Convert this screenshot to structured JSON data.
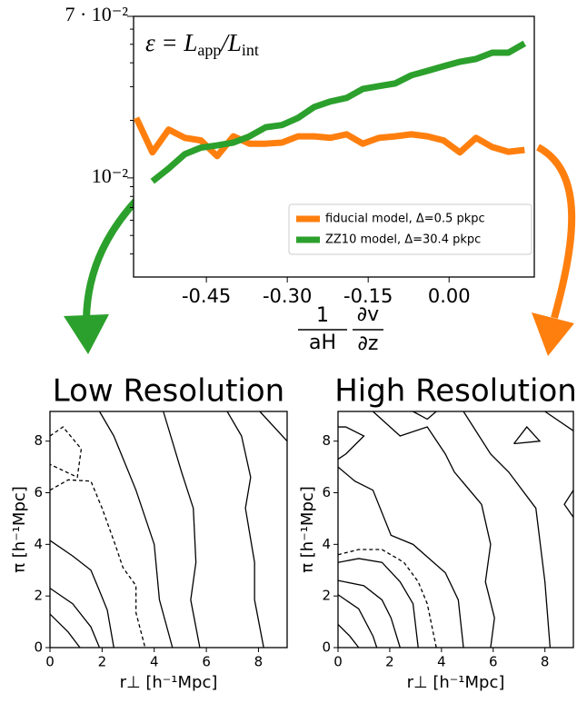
{
  "chart_data": [
    {
      "type": "line",
      "annotation": [
        "ε = L",
        "app",
        "/L",
        "int"
      ],
      "x_label": [
        "1",
        "aH",
        "∂v",
        "∂z"
      ],
      "x": [
        -0.58,
        -0.55,
        -0.52,
        -0.49,
        -0.46,
        -0.43,
        -0.4,
        -0.37,
        -0.34,
        -0.31,
        -0.28,
        -0.25,
        -0.22,
        -0.19,
        -0.16,
        -0.13,
        -0.1,
        -0.07,
        -0.04,
        -0.01,
        0.02,
        0.05,
        0.08,
        0.11,
        0.14
      ],
      "series": [
        {
          "name": "fiducial model, Δ=0.5 pkpc",
          "color": "#ff7f0e",
          "values": [
            0.0206,
            0.0136,
            0.0179,
            0.0162,
            0.0157,
            0.013,
            0.0165,
            0.0151,
            0.0151,
            0.0153,
            0.0165,
            0.0165,
            0.0162,
            0.0169,
            0.0151,
            0.0162,
            0.0165,
            0.0169,
            0.0165,
            0.0157,
            0.0136,
            0.0162,
            0.0145,
            0.0137,
            0.014
          ]
        },
        {
          "name": "ZZ10 model, Δ=30.4 pkpc",
          "color": "#2ca02c",
          "values": [
            null,
            0.0096,
            0.0112,
            0.0133,
            0.0144,
            0.0148,
            0.0153,
            0.0165,
            0.0184,
            0.0189,
            0.0206,
            0.0235,
            0.0251,
            0.0262,
            0.0292,
            0.0302,
            0.0312,
            0.0344,
            0.0363,
            0.0384,
            0.0405,
            0.0419,
            0.0452,
            0.0452,
            0.0505
          ]
        }
      ],
      "log_y": true,
      "xlim": [
        -0.585,
        0.158
      ],
      "xticks": [
        -0.45,
        {
          "value": -0.3,
          "label": "-0.30"
        },
        -0.15,
        {
          "value": 0,
          "label": "0.00"
        }
      ],
      "ylim": [
        0.00303,
        0.07
      ],
      "yticks": [
        {
          "value": 0.01,
          "label": "10⁻²"
        },
        {
          "value": 0.07,
          "label": "7 · 10⁻²"
        }
      ],
      "yminorticks": [
        0.004,
        0.005,
        0.006,
        0.007,
        0.008,
        0.009,
        0.02,
        0.03,
        0.04,
        0.05,
        0.06
      ],
      "legend": "lower right"
    },
    {
      "type": "contour",
      "title": "Low Resolution",
      "x_label": "r⊥ [h⁻¹Mpc]",
      "y_label": "π [h⁻¹Mpc]",
      "xlim": [
        0,
        9.1
      ],
      "ylim": [
        0,
        9.15
      ],
      "xticks": [
        0,
        2,
        4,
        6,
        8
      ],
      "yticks": [
        0,
        2,
        4,
        6,
        8
      ],
      "contours": [
        {
          "dashed": false,
          "x": [
            0,
            0.7,
            1.15
          ],
          "y": [
            1.3,
            0.6,
            0
          ]
        },
        {
          "dashed": false,
          "x": [
            0,
            0.87,
            1.57,
            1.9
          ],
          "y": [
            2.3,
            1.7,
            0.8,
            0
          ]
        },
        {
          "dashed": false,
          "x": [
            0,
            0.87,
            1.57,
            1.9,
            2.2,
            2.45
          ],
          "y": [
            4.15,
            3.55,
            3.0,
            2.2,
            1.45,
            0
          ]
        },
        {
          "dashed": true,
          "x": [
            0,
            0.7,
            1.57,
            2.0,
            2.5,
            2.8,
            3.3,
            3.3,
            3.65
          ],
          "y": [
            6.1,
            6.5,
            6.45,
            5.4,
            4.0,
            3.1,
            2.4,
            1.35,
            0
          ]
        },
        {
          "dashed": true,
          "x": [
            0,
            0.5,
            1.2,
            1.05,
            0
          ],
          "y": [
            8.2,
            8.55,
            7.7,
            6.6,
            7.1
          ]
        },
        {
          "dashed": false,
          "x": [
            1.9,
            2.45,
            3.3,
            4.0,
            4.2,
            4.7
          ],
          "y": [
            9.15,
            8.2,
            6.1,
            4.0,
            1.85,
            0
          ]
        },
        {
          "dashed": false,
          "x": [
            4.35,
            5.05,
            5.5,
            5.6,
            5.4,
            5.75
          ],
          "y": [
            9.15,
            6.8,
            5.4,
            3.3,
            1.85,
            0
          ]
        },
        {
          "dashed": false,
          "x": [
            6.8,
            7.35,
            7.7,
            7.5,
            7.85,
            7.85,
            8.2
          ],
          "y": [
            9.15,
            8.2,
            6.6,
            5.4,
            3.3,
            1.85,
            0
          ]
        },
        {
          "dashed": false,
          "x": [
            8.05,
            9.1
          ],
          "y": [
            9.15,
            8.0
          ]
        }
      ]
    },
    {
      "type": "contour",
      "title": "High Resolution",
      "x_label": "r⊥ [h⁻¹Mpc]",
      "y_label": "π [h⁻¹Mpc]",
      "xlim": [
        0,
        9.1
      ],
      "ylim": [
        0,
        9.15
      ],
      "xticks": [
        0,
        2,
        4,
        6,
        8
      ],
      "yticks": [
        0,
        2,
        4,
        6,
        8
      ],
      "contours": [
        {
          "dashed": false,
          "x": [
            0,
            0.45,
            0.8
          ],
          "y": [
            0.9,
            0.45,
            0
          ]
        },
        {
          "dashed": false,
          "x": [
            0,
            0.8,
            1.35,
            1.5
          ],
          "y": [
            2.05,
            1.5,
            0.45,
            0
          ]
        },
        {
          "dashed": false,
          "x": [
            0,
            1.0,
            1.7,
            2.05,
            2.4
          ],
          "y": [
            2.6,
            2.4,
            1.85,
            1.15,
            0
          ]
        },
        {
          "dashed": false,
          "x": [
            0,
            0.8,
            1.7,
            2.4,
            2.9,
            3.1
          ],
          "y": [
            3.3,
            3.45,
            3.3,
            2.55,
            1.7,
            0
          ]
        },
        {
          "dashed": true,
          "x": [
            0,
            0.8,
            1.7,
            2.55,
            3.1,
            3.45,
            3.8
          ],
          "y": [
            3.6,
            3.8,
            3.8,
            3.3,
            2.55,
            1.7,
            0
          ]
        },
        {
          "dashed": false,
          "x": [
            0,
            0.65,
            1.35,
            2.05,
            2.9,
            4.15,
            4.65,
            4.85
          ],
          "y": [
            7.0,
            6.45,
            6.1,
            4.35,
            4.0,
            2.9,
            1.85,
            0
          ]
        },
        {
          "dashed": false,
          "x": [
            0,
            0.3,
            1.0,
            0.3,
            0
          ],
          "y": [
            8.55,
            8.55,
            8.2,
            7.5,
            7.3
          ]
        },
        {
          "dashed": false,
          "x": [
            1.35,
            2.4,
            3.45,
            4.15,
            4.5,
            5.55,
            5.9,
            5.7,
            6.05,
            5.9
          ],
          "y": [
            9.15,
            8.2,
            8.55,
            7.5,
            6.8,
            5.55,
            4.0,
            2.55,
            1.15,
            0
          ]
        },
        {
          "dashed": false,
          "x": [
            2.9,
            3.45,
            3.8
          ],
          "y": [
            9.15,
            8.85,
            9.15
          ]
        },
        {
          "dashed": false,
          "x": [
            4.85,
            5.9,
            6.6,
            7.65,
            8.0,
            8.2
          ],
          "y": [
            9.15,
            7.5,
            6.8,
            5.4,
            2.55,
            0
          ]
        },
        {
          "dashed": false,
          "x": [
            6.8,
            7.3,
            7.8,
            6.8
          ],
          "y": [
            7.9,
            8.55,
            8.0,
            7.9
          ]
        },
        {
          "dashed": false,
          "x": [
            8.0,
            9.1
          ],
          "y": [
            9.15,
            8.4
          ]
        },
        {
          "dashed": false,
          "x": [
            9.1,
            8.75,
            9.1
          ],
          "y": [
            6.1,
            5.55,
            5.05
          ]
        }
      ]
    }
  ]
}
